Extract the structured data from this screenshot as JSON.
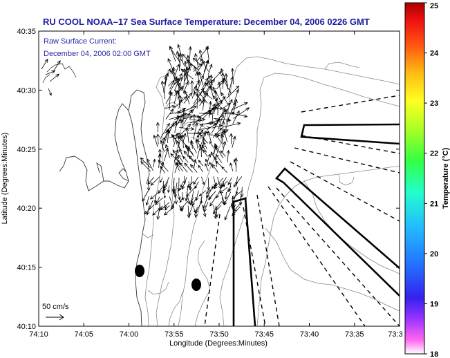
{
  "chart_data": {
    "type": "vector-field-map",
    "title": "RU COOL  NOAA–17  Sea Surface Temperature:  December 04, 2006 0226 GMT",
    "annotation_line1": "Raw Surface Current:",
    "annotation_line2": "December 04, 2006 02:00 GMT",
    "xlabel": "Longitude (Degrees:Minutes)",
    "ylabel": "Latitude (Degrees:Minutes)",
    "x_ticks": [
      "74:10",
      "74:05",
      "74:00",
      "73:55",
      "73:50",
      "73:45",
      "73:40",
      "73:35",
      "73:3"
    ],
    "y_ticks": [
      "40:35",
      "40:30",
      "40:25",
      "40:20",
      "40:15",
      "40:10"
    ],
    "xlim_minutes_west": [
      -10,
      30
    ],
    "ylim_minutes": [
      10,
      35
    ],
    "scale_label": "50 cm/s",
    "colorbar": {
      "label": "Temperature (°C)",
      "ticks": [
        "25",
        "24",
        "23",
        "22",
        "21",
        "20",
        "19",
        "18"
      ],
      "range": [
        18,
        25
      ]
    },
    "grid": false,
    "legend": "none"
  }
}
